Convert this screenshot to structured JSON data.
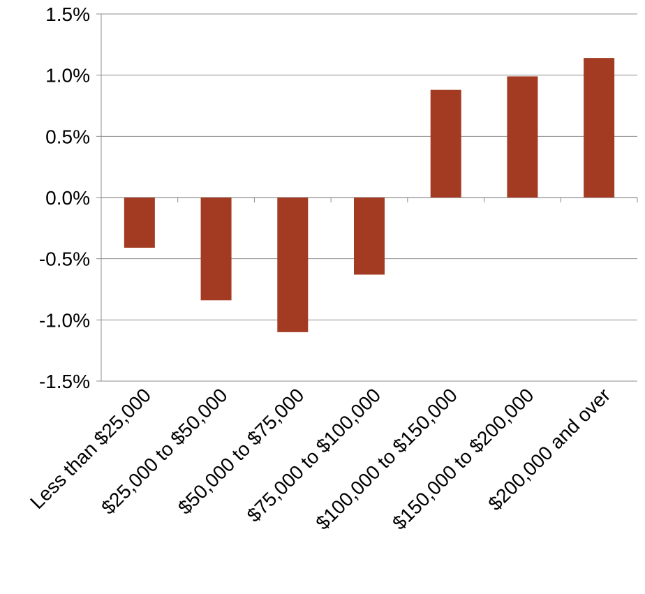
{
  "chart_data": {
    "type": "bar",
    "title": "",
    "xlabel": "",
    "ylabel": "",
    "categories": [
      "Less than $25,000",
      "$25,000 to $50,000",
      "$50,000 to $75,000",
      "$75,000 to $100,000",
      "$100,000 to $150,000",
      "$150,000 to $200,000",
      "$200,000 and over"
    ],
    "values": [
      -0.41,
      -0.84,
      -1.1,
      -0.63,
      0.88,
      0.99,
      1.14
    ],
    "ylim": [
      -1.5,
      1.5
    ],
    "yticks": [
      1.5,
      1.0,
      0.5,
      0.0,
      -0.5,
      -1.0,
      -1.5
    ],
    "ytick_labels": [
      "1.5%",
      "1.0%",
      "0.5%",
      "0.0%",
      "-0.5%",
      "-1.0%",
      "-1.5%"
    ],
    "grid": true,
    "bar_color": "#A33A22",
    "legend": "none"
  }
}
